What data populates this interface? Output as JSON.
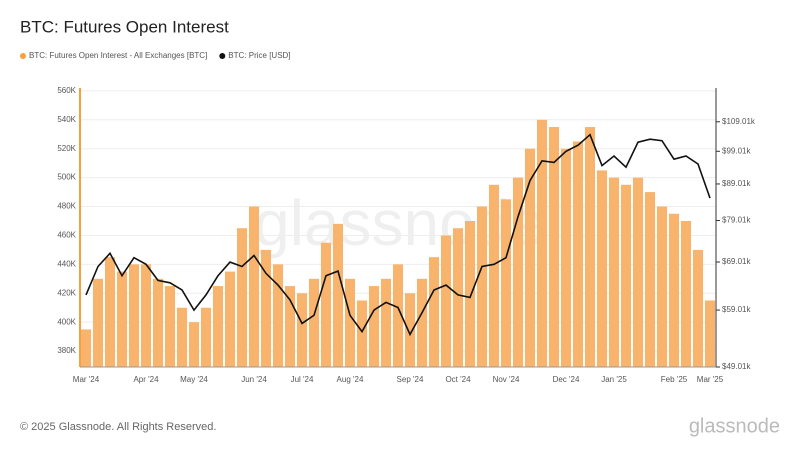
{
  "chart_data": {
    "type": "bar-line",
    "title": "BTC: Futures Open Interest",
    "footer": "© 2025 Glassnode. All Rights Reserved.",
    "watermark": "glassnode",
    "logo": "glassnode",
    "categories": [
      "Mar '24",
      null,
      null,
      null,
      null,
      "Apr '24",
      null,
      null,
      null,
      "May '24",
      null,
      null,
      null,
      null,
      "Jun '24",
      null,
      null,
      null,
      "Jul '24",
      null,
      null,
      null,
      "Aug '24",
      null,
      null,
      null,
      null,
      "Sep '24",
      null,
      null,
      null,
      "Oct '24",
      null,
      null,
      null,
      "Nov '24",
      null,
      null,
      null,
      null,
      "Dec '24",
      null,
      null,
      null,
      "Jan '25",
      null,
      null,
      null,
      null,
      "Feb '25",
      null,
      null,
      "Mar '25"
    ],
    "series": [
      {
        "name": "BTC: Futures Open Interest - All Exchanges [BTC]",
        "color": "#f8b46c",
        "legend_color": "#f7a03c",
        "axis": "y",
        "values": [
          395000,
          430000,
          445000,
          435000,
          440000,
          440000,
          430000,
          425000,
          410000,
          400000,
          410000,
          425000,
          435000,
          465000,
          480000,
          450000,
          440000,
          425000,
          420000,
          430000,
          455000,
          468000,
          430000,
          415000,
          425000,
          430000,
          440000,
          420000,
          430000,
          445000,
          460000,
          465000,
          470000,
          480000,
          495000,
          485000,
          500000,
          520000,
          540000,
          535000,
          520000,
          525000,
          535000,
          505000,
          500000,
          495000,
          500000,
          490000,
          480000,
          475000,
          470000,
          450000,
          415000
        ]
      },
      {
        "name": "BTC: Price [USD]",
        "color": "#111111",
        "axis": "y2",
        "values": [
          62000,
          68000,
          71000,
          66000,
          70000,
          68500,
          65000,
          64500,
          63000,
          59000,
          62000,
          66000,
          69000,
          68000,
          70500,
          66500,
          64000,
          61000,
          56500,
          58000,
          66000,
          67000,
          58000,
          55000,
          59000,
          60500,
          59500,
          54500,
          58500,
          63000,
          64000,
          62000,
          61500,
          68000,
          68500,
          70000,
          80000,
          90000,
          96000,
          95500,
          99000,
          101000,
          104500,
          94500,
          97500,
          94000,
          102000,
          103000,
          102500,
          96500,
          97500,
          95000,
          85000
        ]
      }
    ],
    "ylim": [
      369000,
      562000
    ],
    "yticks": [
      {
        "value": 380000,
        "label": "380K"
      },
      {
        "value": 400000,
        "label": "400K"
      },
      {
        "value": 420000,
        "label": "420K"
      },
      {
        "value": 440000,
        "label": "440K"
      },
      {
        "value": 460000,
        "label": "460K"
      },
      {
        "value": 480000,
        "label": "480K"
      },
      {
        "value": 500000,
        "label": "500K"
      },
      {
        "value": 520000,
        "label": "520K"
      },
      {
        "value": 540000,
        "label": "540K"
      },
      {
        "value": 560000,
        "label": "560K"
      }
    ],
    "y2lim": [
      49010,
      121700
    ],
    "y2log": true,
    "y2ticks": [
      {
        "value": 49010,
        "label": "$49.01k"
      },
      {
        "value": 59010,
        "label": "$59.01k"
      },
      {
        "value": 69010,
        "label": "$69.01k"
      },
      {
        "value": 79010,
        "label": "$79.01k"
      },
      {
        "value": 89010,
        "label": "$89.01k"
      },
      {
        "value": 99010,
        "label": "$99.01k"
      },
      {
        "value": 109010,
        "label": "$109.01k"
      }
    ],
    "grid": true
  }
}
